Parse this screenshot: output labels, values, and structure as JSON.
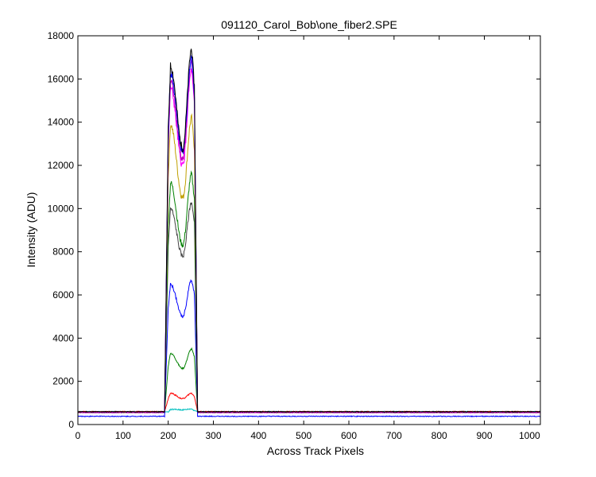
{
  "chart_data": {
    "type": "line",
    "title": "091120_Carol_Bob\\one_fiber2.SPE",
    "xlabel": "Across Track Pixels",
    "ylabel": "Intensity (ADU)",
    "xlim": [
      0,
      1024
    ],
    "ylim": [
      0,
      18000
    ],
    "xticks": [
      0,
      100,
      200,
      300,
      400,
      500,
      600,
      700,
      800,
      900,
      1000
    ],
    "yticks": [
      0,
      2000,
      4000,
      6000,
      8000,
      10000,
      12000,
      14000,
      16000,
      18000
    ],
    "grid": false,
    "legend": "none",
    "profile": {
      "rise_start": 192,
      "rise_end": 200,
      "left_peak_x": 205,
      "dip_x": 232,
      "right_peak_x": 252,
      "fall_start": 258,
      "fall_end": 265
    },
    "series": [
      {
        "color": "#00bfbf",
        "baseline": 600,
        "left_peak": 700,
        "dip": 680,
        "right_peak": 720
      },
      {
        "color": "#ff0000",
        "baseline": 600,
        "left_peak": 1450,
        "dip": 1200,
        "right_peak": 1450
      },
      {
        "color": "#008000",
        "baseline": 580,
        "left_peak": 3300,
        "dip": 2600,
        "right_peak": 3500
      },
      {
        "color": "#0000ff",
        "baseline": 560,
        "left_peak": 6500,
        "dip": 5000,
        "right_peak": 6700
      },
      {
        "color": "#404040",
        "baseline": 560,
        "left_peak": 10000,
        "dip": 7800,
        "right_peak": 10300
      },
      {
        "color": "#008000",
        "baseline": 560,
        "left_peak": 11200,
        "dip": 8300,
        "right_peak": 11600
      },
      {
        "color": "#c0a000",
        "baseline": 560,
        "left_peak": 13900,
        "dip": 10500,
        "right_peak": 14200
      },
      {
        "color": "#ff00ff",
        "baseline": 560,
        "left_peak": 15600,
        "dip": 12000,
        "right_peak": 16400
      },
      {
        "color": "#bf00bf",
        "baseline": 560,
        "left_peak": 15900,
        "dip": 12300,
        "right_peak": 16800
      },
      {
        "color": "#0000ff",
        "baseline": 380,
        "left_peak": 16300,
        "dip": 12600,
        "right_peak": 17000
      },
      {
        "color": "#000000",
        "baseline": 590,
        "left_peak": 16600,
        "dip": 12800,
        "right_peak": 17400
      }
    ]
  }
}
